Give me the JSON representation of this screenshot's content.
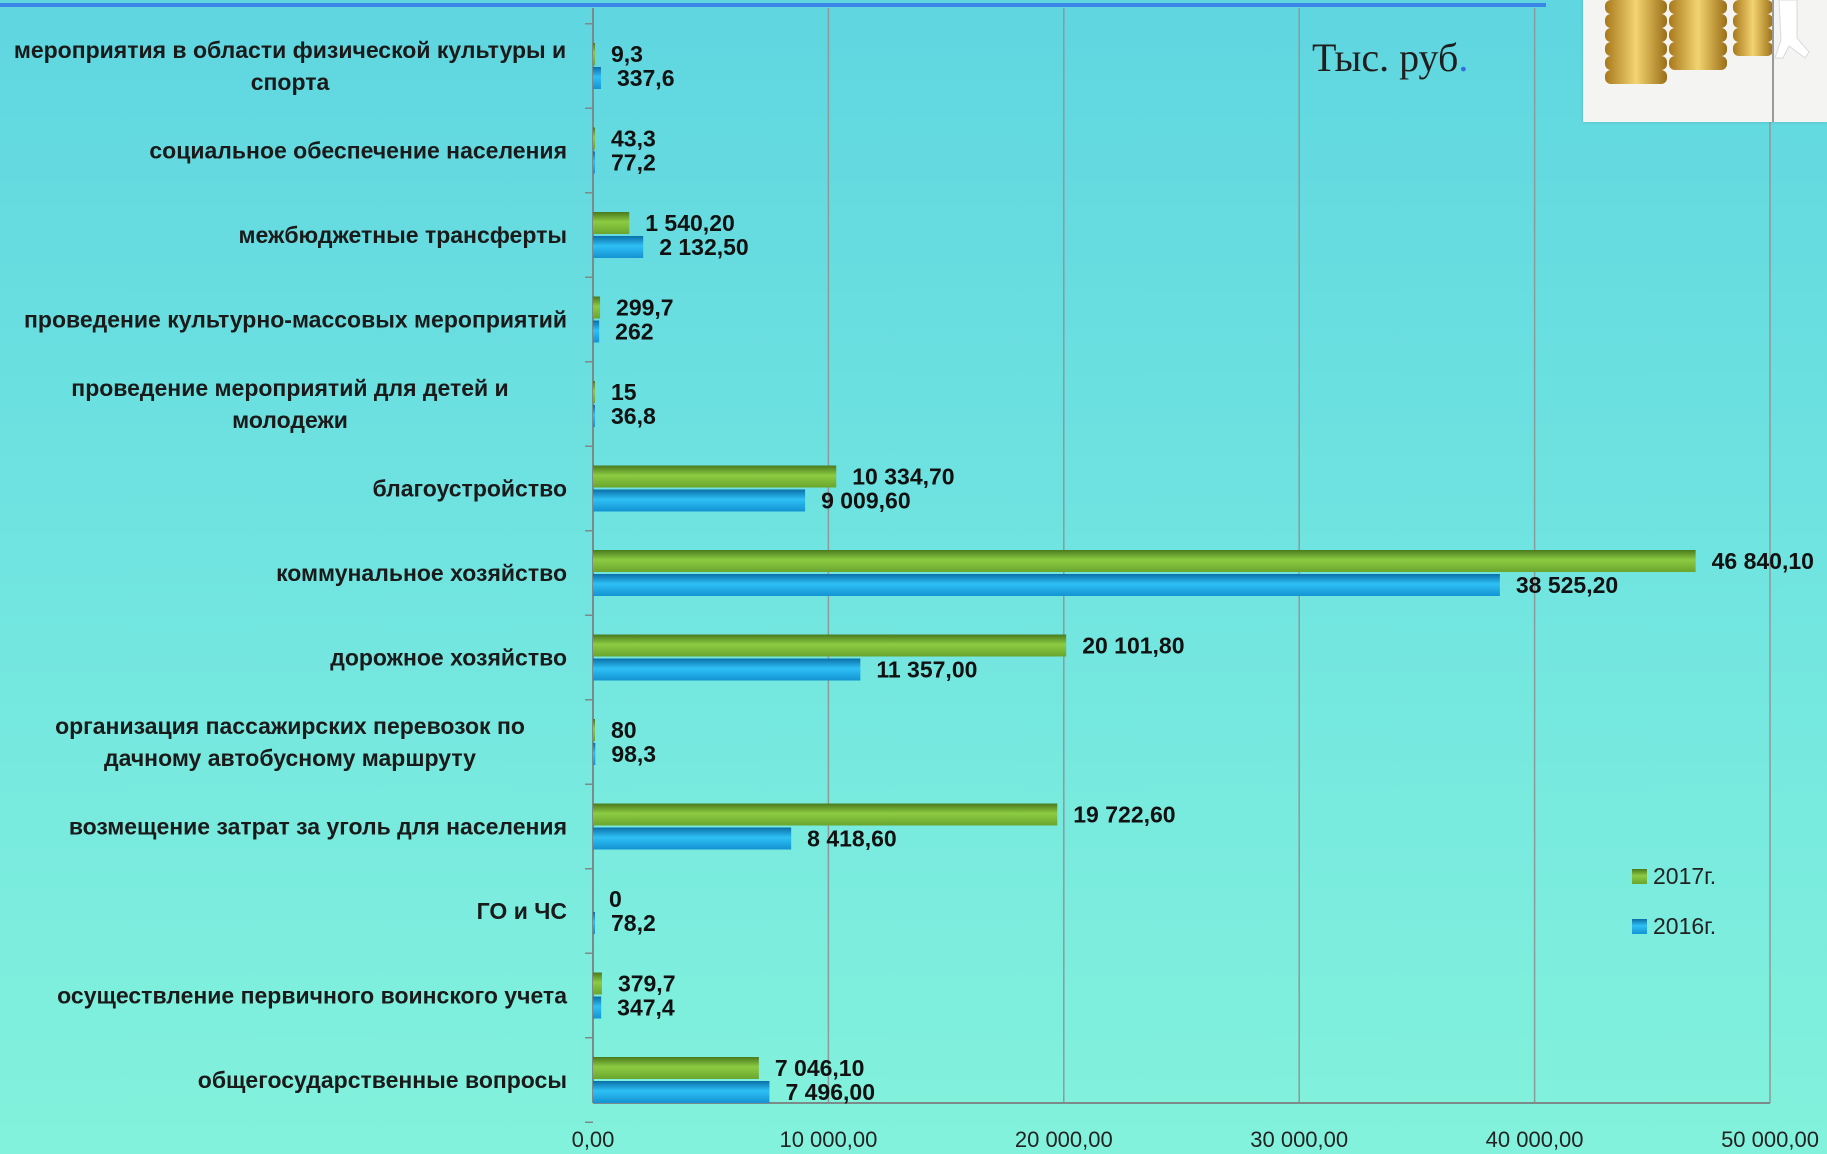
{
  "unit_label": "Тыс. руб",
  "unit_dot": ".",
  "chart_data": {
    "type": "bar",
    "orientation": "horizontal",
    "title": "",
    "xlabel": "",
    "ylabel": "",
    "xlim": [
      0,
      50000
    ],
    "grid": true,
    "legend_position": "right",
    "categories": [
      "мероприятия в области физической культуры и спорта",
      "социальное обеспечение населения",
      "межбюджетные трансферты",
      "проведение культурно-массовых мероприятий",
      "проведение мероприятий для детей и молодежи",
      "благоустройство",
      "коммунальное хозяйство",
      "дорожное хозяйство",
      "организация пассажирских перевозок по дачному автобусному маршруту",
      "возмещение затрат за уголь для населения",
      "ГО и ЧС",
      "осуществление первичного воинского учета",
      "общегосударственные вопросы"
    ],
    "category_lines": [
      [
        "мероприятия в области физической культуры и",
        "спорта"
      ],
      [
        "социальное обеспечение населения"
      ],
      [
        "межбюджетные трансферты"
      ],
      [
        "проведение культурно-массовых мероприятий"
      ],
      [
        "проведение мероприятий для детей и",
        "молодежи"
      ],
      [
        "благоустройство"
      ],
      [
        "коммунальное хозяйство"
      ],
      [
        "дорожное хозяйство"
      ],
      [
        "организация пассажирских перевозок по",
        "дачному автобусному маршруту"
      ],
      [
        "возмещение затрат за уголь для населения"
      ],
      [
        "ГО и ЧС"
      ],
      [
        "осуществление первичного воинского учета"
      ],
      [
        "общегосударственные вопросы"
      ]
    ],
    "series": [
      {
        "name": "2017г.",
        "color": "#7cb53a",
        "values": [
          9.3,
          43.3,
          1540.2,
          299.7,
          15,
          10334.7,
          46840.1,
          20101.8,
          80,
          19722.6,
          0,
          379.7,
          7046.1
        ],
        "labels": [
          "9,3",
          "43,3",
          "1 540,20",
          "299,7",
          "15",
          "10 334,70",
          "46 840,10",
          "20 101,80",
          "80",
          "19 722,60",
          "0",
          "379,7",
          "7 046,10"
        ]
      },
      {
        "name": "2016г.",
        "color": "#1aa9e8",
        "values": [
          337.6,
          77.2,
          2132.5,
          262,
          36.8,
          9009.6,
          38525.2,
          11357,
          98.3,
          8418.6,
          78.2,
          347.4,
          7496
        ],
        "labels": [
          "337,6",
          "77,2",
          "2 132,50",
          "262",
          "36,8",
          "9 009,60",
          "38 525,20",
          "11 357,00",
          "98,3",
          "8 418,60",
          "78,2",
          "347,4",
          "7 496,00"
        ]
      }
    ],
    "x_ticks": [
      0,
      10000,
      20000,
      30000,
      40000,
      50000
    ],
    "x_tick_labels": [
      "0,00",
      "10 000,00",
      "20 000,00",
      "30 000,00",
      "40 000,00",
      "50 000,00"
    ]
  }
}
